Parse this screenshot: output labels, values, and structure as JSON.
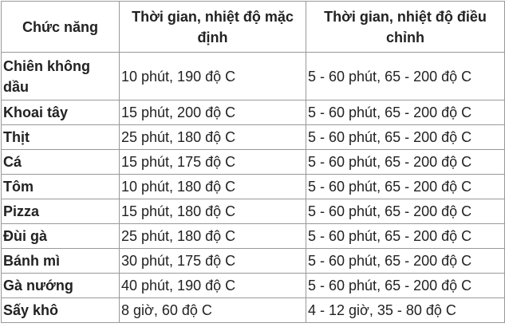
{
  "table": {
    "header": [
      "Chức năng",
      "Thời gian, nhiệt độ mặc định",
      "Thời gian, nhiệt độ điều chỉnh"
    ],
    "rows": [
      [
        "Chiên không dầu",
        "10 phút, 190 độ C",
        "5 - 60 phút, 65 - 200 độ C"
      ],
      [
        "Khoai tây",
        "15 phút, 200 độ C",
        "5 - 60 phút, 65 - 200 độ C"
      ],
      [
        "Thịt",
        "25 phút, 180 độ C",
        "5 - 60 phút, 65 - 200 độ C"
      ],
      [
        "Cá",
        "15 phút, 175 độ C",
        "5 - 60 phút, 65 - 200 độ C"
      ],
      [
        "Tôm",
        "10 phút, 180 độ C",
        "5 - 60 phút, 65 - 200 độ C"
      ],
      [
        "Pizza",
        "15 phút, 180 độ C",
        "5 - 60 phút, 65 - 200 độ C"
      ],
      [
        "Đùi gà",
        "25 phút, 180 độ C",
        "5 - 60 phút, 65 - 200 độ C"
      ],
      [
        "Bánh mì",
        "30 phút, 175 độ C",
        "5 - 60 phút, 65 - 200 độ C"
      ],
      [
        "Gà nướng",
        "40 phút, 190 độ C",
        "5 - 60 phút, 65 - 200 độ C"
      ],
      [
        "Sấy khô",
        "8 giờ, 60 độ C",
        "4 - 12 giờ, 35 - 80 độ C"
      ]
    ]
  }
}
